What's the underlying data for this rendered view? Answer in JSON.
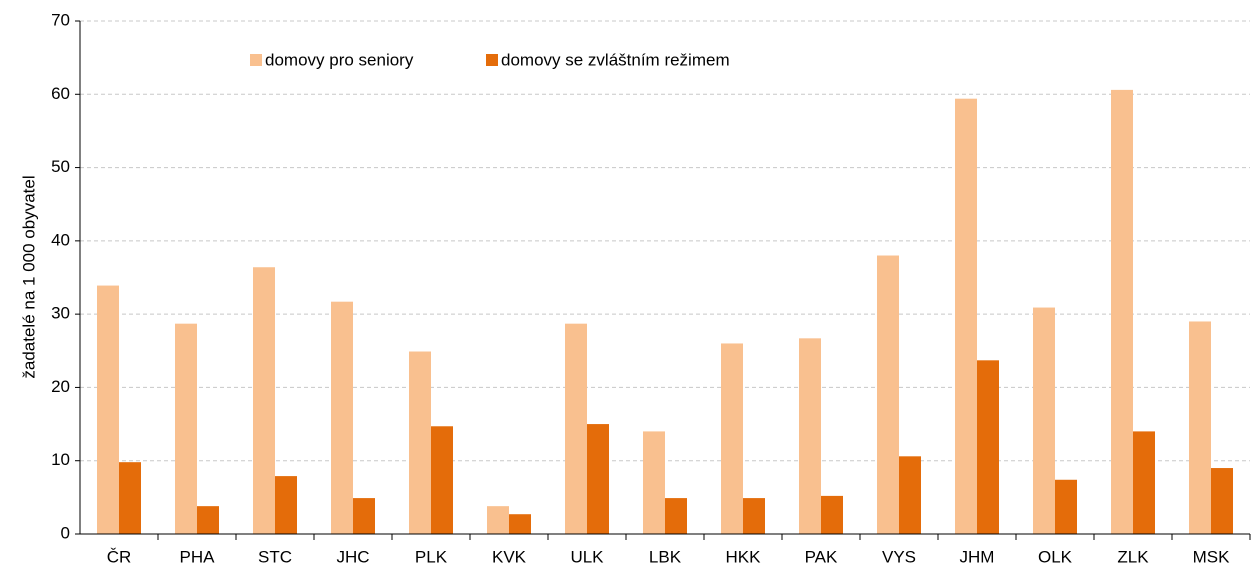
{
  "chart_data": {
    "type": "bar",
    "y_label": "žadatelé na 1 000 obyvatel",
    "categories": [
      "ČR",
      "PHA",
      "STC",
      "JHC",
      "PLK",
      "KVK",
      "ULK",
      "LBK",
      "HKK",
      "PAK",
      "VYS",
      "JHM",
      "OLK",
      "ZLK",
      "MSK"
    ],
    "series": [
      {
        "name": "domovy pro seniory",
        "color": "#f9c08f",
        "values": [
          33.9,
          28.7,
          36.4,
          31.7,
          24.9,
          3.8,
          28.7,
          14.0,
          26.0,
          26.7,
          38.0,
          59.4,
          30.9,
          60.6,
          29.0
        ]
      },
      {
        "name": "domovy se zvláštním režimem",
        "color": "#e46c0a",
        "values": [
          9.8,
          3.8,
          7.9,
          4.9,
          14.7,
          2.7,
          15.0,
          4.9,
          4.9,
          5.2,
          10.6,
          23.7,
          7.4,
          14.0,
          9.0
        ]
      }
    ],
    "ylim": [
      0,
      70
    ],
    "yticks": [
      0,
      10,
      20,
      30,
      40,
      50,
      60,
      70
    ],
    "grid": true
  }
}
